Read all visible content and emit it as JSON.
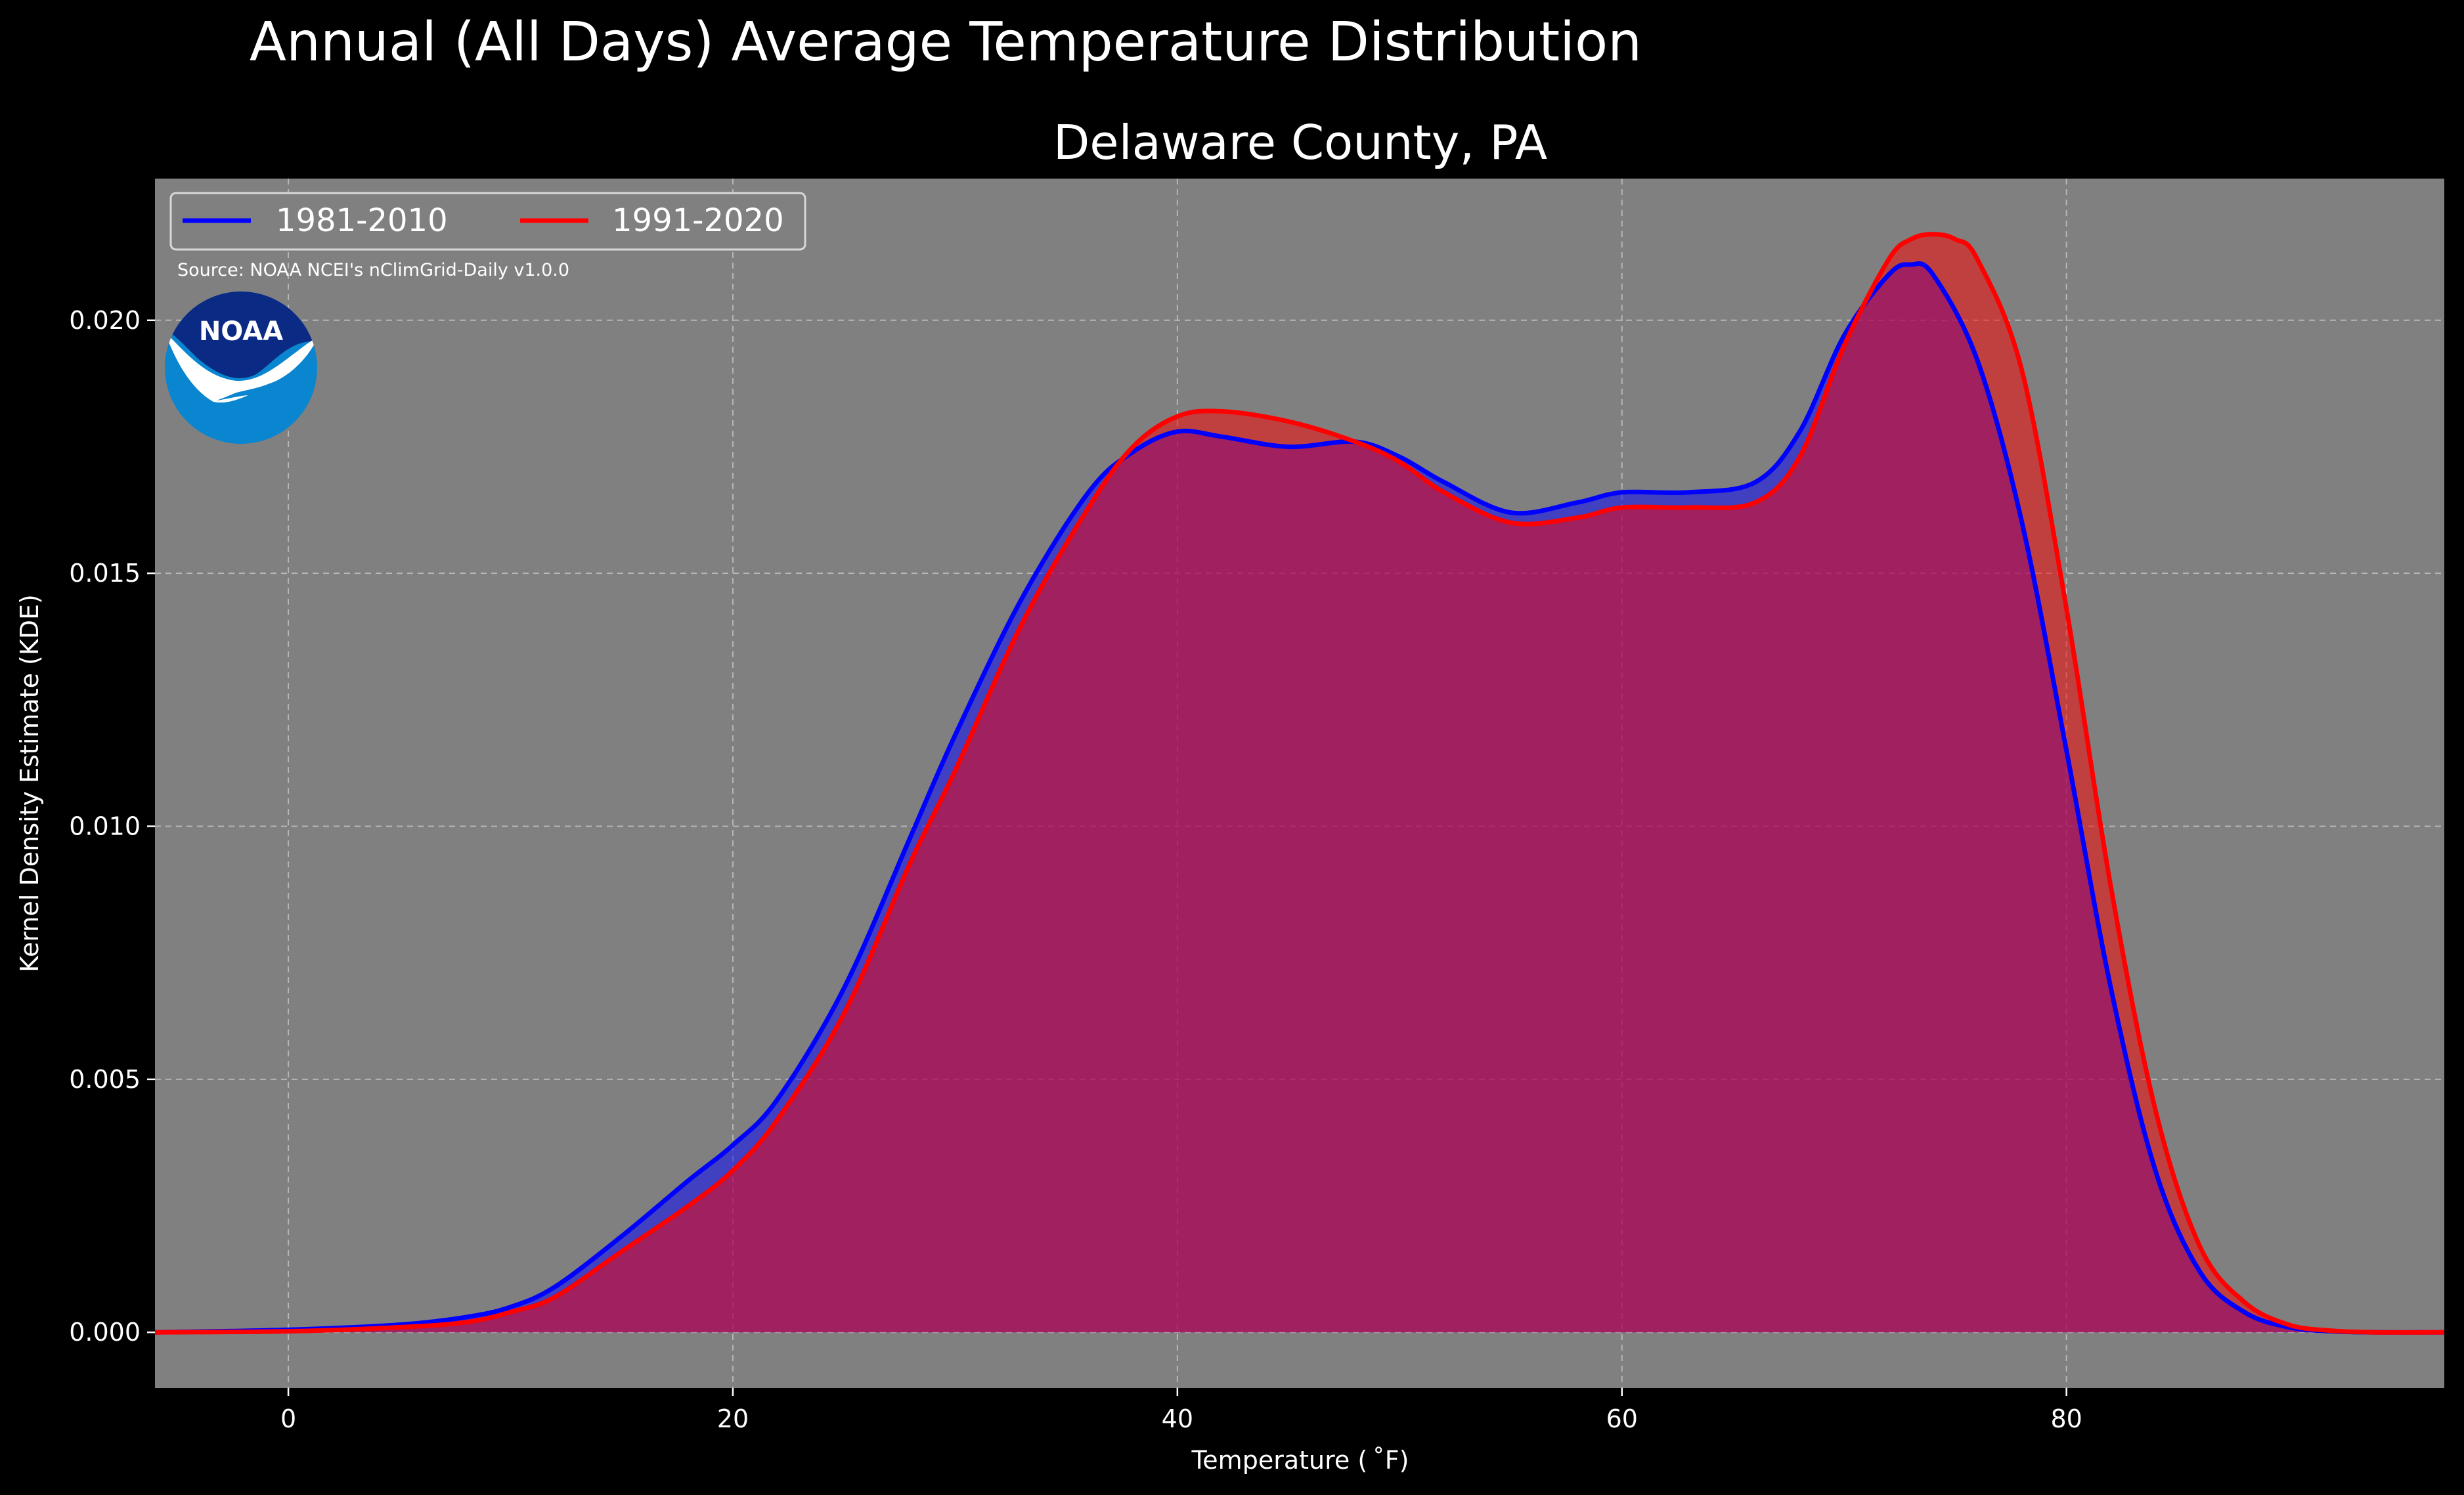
{
  "chart_data": {
    "type": "area",
    "title": "Annual (All Days) Average Temperature Distribution",
    "subtitle": "Delaware County, PA",
    "xlabel": "Temperature ($^\\circ$F)",
    "xlabel_display": "Temperature ( ˚F)",
    "ylabel": "Kernel Density Estimate (KDE)",
    "xlim": [
      -6,
      97
    ],
    "ylim": [
      -0.0011,
      0.0228
    ],
    "xticks": [
      0,
      20,
      40,
      60,
      80
    ],
    "xtick_labels": [
      "0",
      "20",
      "40",
      "60",
      "80"
    ],
    "yticks": [
      0.0,
      0.005,
      0.01,
      0.015,
      0.02
    ],
    "ytick_labels": [
      "0.000",
      "0.005",
      "0.010",
      "0.015",
      "0.020"
    ],
    "grid": true,
    "legend_position": "top-left",
    "annotation": "Source: NOAA NCEI's nClimGrid-Daily v1.0.0",
    "logo_text": "NOAA",
    "background_color": "#000000",
    "plot_background": "#808080",
    "series": [
      {
        "name": "1981-2010",
        "color": "#0000ff",
        "x": [
          -6,
          0,
          5,
          8,
          10,
          12,
          15,
          18,
          20,
          22,
          25,
          28,
          30,
          33,
          36,
          38,
          40,
          42,
          45,
          48,
          50,
          52,
          55,
          58,
          60,
          63,
          66,
          68,
          70,
          72,
          73,
          74,
          76,
          78,
          80,
          82,
          84,
          86,
          88,
          90,
          92,
          94,
          97
        ],
        "y": [
          0.0,
          5e-05,
          0.00015,
          0.0003,
          0.0005,
          0.0009,
          0.0019,
          0.003,
          0.0037,
          0.0046,
          0.0068,
          0.0098,
          0.0118,
          0.0145,
          0.0166,
          0.0174,
          0.0178,
          0.0177,
          0.0175,
          0.0176,
          0.0173,
          0.0168,
          0.0162,
          0.0164,
          0.0166,
          0.0166,
          0.0168,
          0.0178,
          0.0197,
          0.0209,
          0.0211,
          0.0209,
          0.0192,
          0.016,
          0.0115,
          0.0068,
          0.0032,
          0.0012,
          0.0004,
          0.0001,
          2e-05,
          0.0,
          0.0
        ]
      },
      {
        "name": "1991-2020",
        "color": "#ff0000",
        "x": [
          -6,
          0,
          5,
          8,
          10,
          12,
          15,
          18,
          20,
          22,
          25,
          28,
          30,
          33,
          36,
          38,
          40,
          42,
          45,
          48,
          50,
          52,
          55,
          58,
          60,
          63,
          66,
          68,
          70,
          72,
          73,
          74,
          75,
          76,
          78,
          80,
          82,
          84,
          86,
          88,
          90,
          92,
          94,
          97
        ],
        "y": [
          0.0,
          2e-05,
          0.0001,
          0.0002,
          0.0004,
          0.0007,
          0.0016,
          0.0025,
          0.0032,
          0.0042,
          0.0063,
          0.0093,
          0.0111,
          0.014,
          0.0163,
          0.0175,
          0.0181,
          0.0182,
          0.018,
          0.0176,
          0.0172,
          0.0166,
          0.016,
          0.0161,
          0.0163,
          0.0163,
          0.0164,
          0.0173,
          0.0195,
          0.0212,
          0.0216,
          0.0217,
          0.0216,
          0.0212,
          0.019,
          0.0143,
          0.0088,
          0.0044,
          0.0017,
          0.0006,
          0.00015,
          3e-05,
          0.0,
          0.0
        ]
      }
    ]
  }
}
